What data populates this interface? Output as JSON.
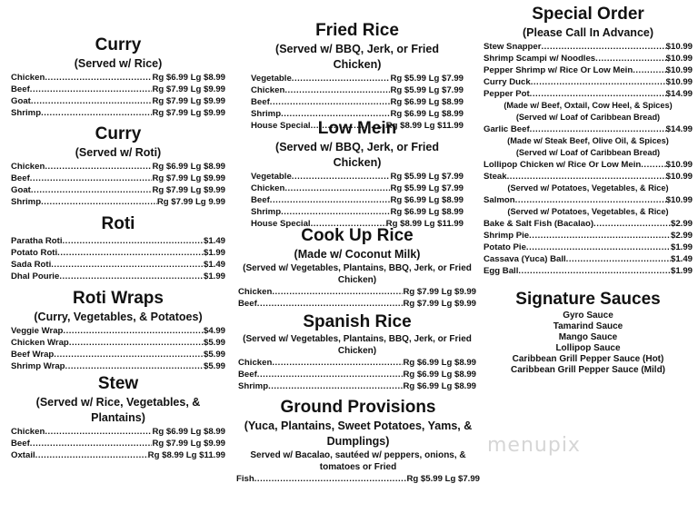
{
  "sections": [
    {
      "id": "s-curry-rice",
      "title": "Curry",
      "subtitles": [
        "(Served w/ Rice)"
      ],
      "items": [
        {
          "name": "Chicken",
          "price": "Rg $6.99 Lg $8.99"
        },
        {
          "name": "Beef",
          "price": "Rg $7.99 Lg $9.99"
        },
        {
          "name": "Goat",
          "price": "Rg $7.99 Lg $9.99"
        },
        {
          "name": "Shrimp",
          "price": "Rg $7.99 Lg $9.99"
        }
      ]
    },
    {
      "id": "s-curry-roti",
      "title": "Curry",
      "subtitles": [
        "(Served w/ Roti)"
      ],
      "items": [
        {
          "name": "Chicken",
          "price": "Rg $6.99 Lg $8.99"
        },
        {
          "name": "Beef",
          "price": "Rg $7.99 Lg $9.99"
        },
        {
          "name": "Goat",
          "price": "Rg $7.99 Lg $9.99"
        },
        {
          "name": "Shrimp",
          "price": "Rg $7.99 Lg 9.99"
        }
      ]
    },
    {
      "id": "s-roti",
      "title": "Roti",
      "subtitles": [],
      "items": [
        {
          "name": "Paratha Roti",
          "price": "$1.49"
        },
        {
          "name": "Potato Roti",
          "price": "$1.99"
        },
        {
          "name": "Sada Roti",
          "price": "$1.49"
        },
        {
          "name": "Dhal Pourie",
          "price": "$1.99"
        }
      ]
    },
    {
      "id": "s-wraps",
      "title": "Roti Wraps",
      "subtitles": [
        "(Curry, Vegetables, & Potatoes)"
      ],
      "items": [
        {
          "name": "Veggie Wrap",
          "price": "$4.99"
        },
        {
          "name": "Chicken Wrap",
          "price": "$5.99"
        },
        {
          "name": "Beef Wrap",
          "price": "$5.99"
        },
        {
          "name": "Shrimp Wrap",
          "price": "$5.99"
        }
      ]
    },
    {
      "id": "s-stew",
      "title": "Stew",
      "subtitles": [
        "(Served w/ Rice, Vegetables, & Plantains)"
      ],
      "items": [
        {
          "name": "Chicken",
          "price": "Rg $6.99 Lg $8.99"
        },
        {
          "name": "Beef",
          "price": "Rg $7.99 Lg $9.99"
        },
        {
          "name": "Oxtail",
          "price": "Rg $8.99 Lg $11.99"
        }
      ]
    },
    {
      "id": "s-fried",
      "title": "Fried Rice",
      "subtitles": [
        "(Served w/ BBQ, Jerk, or Fried Chicken)"
      ],
      "items": [
        {
          "name": "Vegetable",
          "price": "Rg $5.99 Lg $7.99"
        },
        {
          "name": "Chicken",
          "price": "Rg $5.99 Lg $7.99"
        },
        {
          "name": "Beef",
          "price": "Rg $6.99 Lg $8.99"
        },
        {
          "name": "Shrimp",
          "price": "Rg $6.99 Lg $8.99"
        },
        {
          "name": "House Special",
          "price": "Rg $8.99 Lg $11.99"
        }
      ]
    },
    {
      "id": "s-lowmein",
      "title": "Low Mein",
      "subtitles": [
        "(Served w/ BBQ, Jerk, or Fried Chicken)"
      ],
      "items": [
        {
          "name": "Vegetable",
          "price": "Rg $5.99 Lg $7.99"
        },
        {
          "name": "Chicken",
          "price": "Rg $5.99 Lg $7.99"
        },
        {
          "name": "Beef",
          "price": "Rg $6.99 Lg $8.99"
        },
        {
          "name": "Shrimp",
          "price": "Rg $6.99 Lg $8.99"
        },
        {
          "name": "House Special",
          "price": "Rg $8.99 Lg $11.99"
        }
      ]
    },
    {
      "id": "s-cookup",
      "title": "Cook Up Rice",
      "subtitles": [
        "(Made w/ Coconut Milk)"
      ],
      "notes_top": [
        "(Served w/ Vegetables, Plantains, BBQ, Jerk, or Fried Chicken)"
      ],
      "items": [
        {
          "name": "Chicken",
          "price": "Rg $7.99 Lg $9.99"
        },
        {
          "name": "Beef",
          "price": "Rg $7.99 Lg $9.99"
        }
      ]
    },
    {
      "id": "s-spanish",
      "title": "Spanish Rice",
      "subtitles": [],
      "notes_top": [
        "(Served w/ Vegetables, Plantains, BBQ, Jerk, or Fried Chicken)"
      ],
      "items": [
        {
          "name": "Chicken",
          "price": "Rg $6.99 Lg $8.99"
        },
        {
          "name": "Beef",
          "price": "Rg $6.99 Lg $8.99"
        },
        {
          "name": "Shrimp",
          "price": "Rg $6.99 Lg $8.99"
        }
      ]
    },
    {
      "id": "s-ground",
      "title": "Ground Provisions",
      "subtitles": [
        "(Yuca, Plantains, Sweet Potatoes, Yams, & Dumplings)"
      ],
      "notes_top": [
        "Served w/ Bacalao, sautéed w/ peppers, onions, & tomatoes or Fried"
      ],
      "items": [
        {
          "name": "Fish",
          "price": "Rg $5.99 Lg $7.99"
        }
      ]
    },
    {
      "id": "s-special",
      "title": "Special Order",
      "subtitles": [
        "(Please Call In Advance)"
      ],
      "items": [
        {
          "name": "Stew Snapper",
          "price": "$10.99"
        },
        {
          "name": "Shrimp Scampi w/ Noodles",
          "price": "$10.99"
        },
        {
          "name": "Pepper Shrimp w/ Rice Or Low Mein",
          "price": "$10.99"
        },
        {
          "name": "Curry Duck",
          "price": "$10.99"
        },
        {
          "name": "Pepper Pot",
          "price": "$14.99"
        },
        {
          "note": "(Made w/ Beef, Oxtail, Cow Heel, & Spices)"
        },
        {
          "note": "(Served w/ Loaf of Caribbean Bread)"
        },
        {
          "name": "Garlic Beef",
          "price": "$14.99"
        },
        {
          "note": "(Made w/ Steak Beef, Olive Oil, & Spices)"
        },
        {
          "note": "(Served w/ Loaf of Caribbean Bread)"
        },
        {
          "name": "Lollipop Chicken w/ Rice Or Low Mein",
          "price": "$10.99"
        },
        {
          "name": "Steak",
          "price": "$10.99"
        },
        {
          "note": "(Served w/ Potatoes, Vegetables, & Rice)"
        },
        {
          "name": "Salmon",
          "price": "$10.99"
        },
        {
          "note": "(Served w/ Potatoes, Vegetables, & Rice)"
        },
        {
          "name": "Bake & Salt Fish (Bacalao)",
          "price": "$2.99"
        },
        {
          "name": "Shrimp Pie",
          "price": "$2.99"
        },
        {
          "name": "Potato Pie",
          "price": "$1.99"
        },
        {
          "name": "Cassava (Yuca) Ball",
          "price": "$1.49"
        },
        {
          "name": "Egg Ball",
          "price": "$1.99"
        }
      ]
    }
  ],
  "sauces": {
    "title": "Signature Sauces",
    "items": [
      "Gyro Sauce",
      "Tamarind Sauce",
      "Mango Sauce",
      "Lollipop Sauce",
      "Caribbean Grill Pepper Sauce (Hot)",
      "Caribbean Grill Pepper Sauce (Mild)"
    ]
  },
  "watermark": "menupix"
}
